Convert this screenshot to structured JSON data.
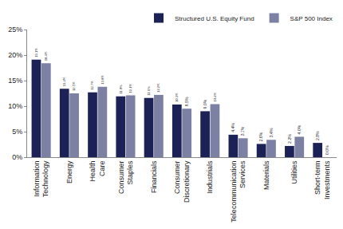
{
  "chart_data": {
    "type": "bar",
    "categories": [
      "Information Technology",
      "Energy",
      "Health Care",
      "Consumer Staples",
      "Financials",
      "Consumer Discretionary",
      "Industrials",
      "Telecommunication Services",
      "Materials",
      "Utilities",
      "Short-term Investments"
    ],
    "series": [
      {
        "name": "Structured U.S. Equity Fund",
        "color": "#1c2255",
        "values": [
          19.1,
          13.4,
          12.7,
          11.9,
          11.6,
          10.3,
          9.0,
          4.4,
          2.6,
          2.2,
          2.8
        ],
        "value_labels": [
          "19.1%",
          "13.4%",
          "12.7%",
          "11.9%",
          "11.6%",
          "10.3%",
          "9.0%",
          "4.4%",
          "2.6%",
          "2.2%",
          "2.8%"
        ]
      },
      {
        "name": "S&P 500 Index",
        "color": "#7c80a3",
        "values": [
          18.4,
          12.5,
          13.8,
          12.1,
          12.2,
          9.5,
          10.4,
          3.7,
          3.4,
          4.0,
          0.0
        ],
        "value_labels": [
          "18.4%",
          "12.5%",
          "13.8%",
          "12.1%",
          "12.2%",
          "9.5%",
          "10.4%",
          "3.7%",
          "3.4%",
          "4.0%",
          "0.0%"
        ]
      }
    ],
    "ylim": [
      0,
      25
    ],
    "yticks": [
      {
        "value": 0,
        "label": "0%"
      },
      {
        "value": 5,
        "label": "5%"
      },
      {
        "value": 10,
        "label": "10%"
      },
      {
        "value": 15,
        "label": "15%"
      },
      {
        "value": 20,
        "label": "20%"
      },
      {
        "value": 25,
        "label": "25%"
      }
    ],
    "grid": false,
    "legend": "upper right",
    "data_labels": true
  }
}
